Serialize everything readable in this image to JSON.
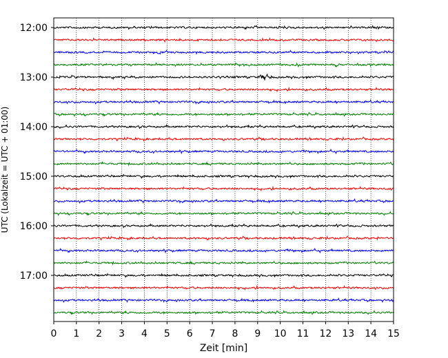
{
  "chart_data": {
    "type": "line",
    "title": "",
    "xlabel": "Zeit  [min]",
    "ylabel": "UTC (Lokalzeit = UTC + 01:00)",
    "xlim": [
      0,
      15
    ],
    "x_ticks": [
      "0",
      "1",
      "2",
      "3",
      "4",
      "5",
      "6",
      "7",
      "8",
      "9",
      "10",
      "11",
      "12",
      "13",
      "14",
      "15"
    ],
    "y_ticks": [
      "12:00",
      "13:00",
      "14:00",
      "15:00",
      "16:00",
      "17:00"
    ],
    "grid": "vertical dotted at each minute",
    "trace_count": 24,
    "trace_interval_min": 15,
    "first_trace": "12:00",
    "last_trace": "17:45",
    "colors": [
      "#000000",
      "#ff0000",
      "#0000ff",
      "#008000"
    ],
    "notable_events": [
      {
        "trace": "13:00",
        "x_min": 9.3,
        "description": "small burst"
      }
    ]
  }
}
